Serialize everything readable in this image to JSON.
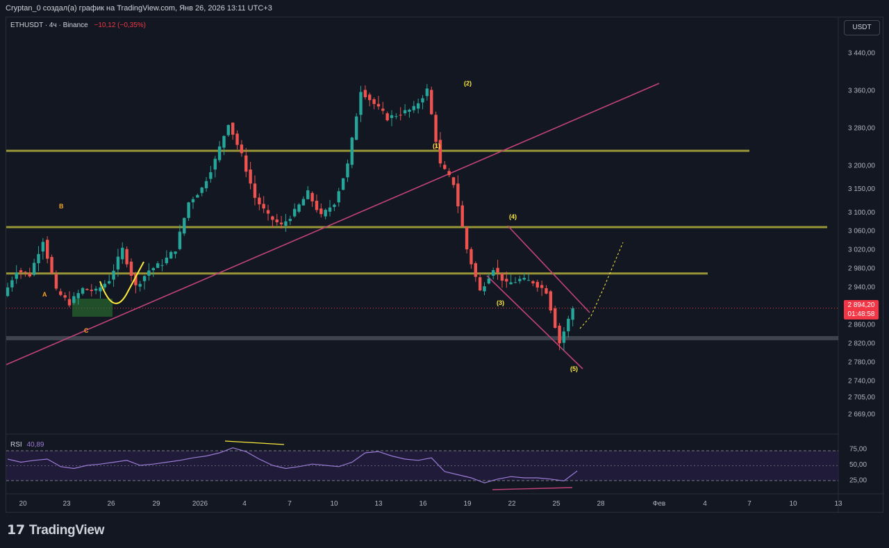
{
  "header": {
    "caption": "Cryptan_0 создал(а) график на TradingView.com, Янв 26, 2026 13:11 UTC+3"
  },
  "legend": {
    "symbol": "ETHUSDT · 4ч · Binance",
    "change": "−10,12 (−0,35%)"
  },
  "currency": "USDT",
  "last_price": {
    "value": "2 894,20",
    "countdown": "01:48:58"
  },
  "rsi": {
    "label": "RSI",
    "value": "40,89"
  },
  "brand": {
    "logo": "17",
    "name": "TradingView"
  },
  "colors": {
    "background": "#131722",
    "up": "#26a69a",
    "down": "#ef5350",
    "support_lines": "#a8a43a",
    "trendline": "#c2437a",
    "wave_labels": "#ffeb3b",
    "rsi_line": "#9c7cd6"
  },
  "chart_data": {
    "type": "candlestick",
    "symbol": "ETHUSDT",
    "timeframe": "4ч",
    "price_axis": {
      "ticks": [
        "3 440,00",
        "3 360,00",
        "3 280,00",
        "3 200,00",
        "3 150,00",
        "3 100,00",
        "3 060,00",
        "3 020,00",
        "2 980,00",
        "2 940,00",
        "2 900,00",
        "2 860,00",
        "2 820,00",
        "2 780,00",
        "2 740,00",
        "2 705,00",
        "2 669,00"
      ],
      "tick_values": [
        3440,
        3360,
        3280,
        3200,
        3150,
        3100,
        3060,
        3020,
        2980,
        2940,
        2900,
        2860,
        2820,
        2780,
        2740,
        2705,
        2669
      ],
      "range": [
        2640,
        3500
      ]
    },
    "time_axis": {
      "ticks": [
        "20",
        "23",
        "26",
        "29",
        "2026",
        "4",
        "7",
        "10",
        "13",
        "16",
        "19",
        "22",
        "25",
        "28",
        "Фев",
        "4",
        "7",
        "10",
        "13"
      ]
    },
    "price_path": [
      {
        "d": 0,
        "p": 2920
      },
      {
        "d": 1,
        "p": 2975
      },
      {
        "d": 2,
        "p": 2965
      },
      {
        "d": 3,
        "p": 3040
      },
      {
        "d": 4,
        "p": 2930
      },
      {
        "d": 5,
        "p": 2905
      },
      {
        "d": 6,
        "p": 2935
      },
      {
        "d": 7,
        "p": 2930
      },
      {
        "d": 8,
        "p": 2955
      },
      {
        "d": 9,
        "p": 3020
      },
      {
        "d": 10,
        "p": 2940
      },
      {
        "d": 11,
        "p": 2975
      },
      {
        "d": 12,
        "p": 2990
      },
      {
        "d": 13,
        "p": 3020
      },
      {
        "d": 14,
        "p": 3120
      },
      {
        "d": 15,
        "p": 3150
      },
      {
        "d": 16,
        "p": 3210
      },
      {
        "d": 17,
        "p": 3290
      },
      {
        "d": 18,
        "p": 3220
      },
      {
        "d": 19,
        "p": 3130
      },
      {
        "d": 20,
        "p": 3090
      },
      {
        "d": 21,
        "p": 3070
      },
      {
        "d": 22,
        "p": 3100
      },
      {
        "d": 23,
        "p": 3140
      },
      {
        "d": 24,
        "p": 3090
      },
      {
        "d": 25,
        "p": 3120
      },
      {
        "d": 26,
        "p": 3200
      },
      {
        "d": 27,
        "p": 3360
      },
      {
        "d": 28,
        "p": 3330
      },
      {
        "d": 29,
        "p": 3300
      },
      {
        "d": 30,
        "p": 3310
      },
      {
        "d": 31,
        "p": 3320
      },
      {
        "d": 32,
        "p": 3360
      },
      {
        "d": 33,
        "p": 3200
      },
      {
        "d": 34,
        "p": 3160
      },
      {
        "d": 35,
        "p": 3020
      },
      {
        "d": 36,
        "p": 2930
      },
      {
        "d": 37,
        "p": 2980
      },
      {
        "d": 38,
        "p": 2945
      },
      {
        "d": 39,
        "p": 2955
      },
      {
        "d": 40,
        "p": 2950
      },
      {
        "d": 41,
        "p": 2930
      },
      {
        "d": 42,
        "p": 2820
      },
      {
        "d": 43,
        "p": 2894
      }
    ],
    "horizontal_levels": [
      {
        "price": 3230,
        "label": "resistance"
      },
      {
        "price": 3067,
        "label": "resistance"
      },
      {
        "price": 2968,
        "label": "support"
      },
      {
        "price": 2830,
        "label": "support",
        "style": "gray-band"
      }
    ],
    "current_price": 2894.2,
    "wave_labels": [
      "A",
      "B",
      "C",
      "(1)",
      "(2)",
      "(3)",
      "(4)",
      "(5)"
    ],
    "rsi_axis": [
      "75,00",
      "50,00",
      "25,00"
    ],
    "rsi_values": [
      60,
      55,
      58,
      60,
      48,
      45,
      50,
      52,
      55,
      58,
      50,
      52,
      55,
      58,
      62,
      65,
      70,
      78,
      72,
      60,
      50,
      45,
      48,
      52,
      50,
      48,
      55,
      70,
      72,
      65,
      60,
      58,
      62,
      40,
      35,
      30,
      22,
      28,
      32,
      30,
      30,
      28,
      25,
      41
    ]
  }
}
